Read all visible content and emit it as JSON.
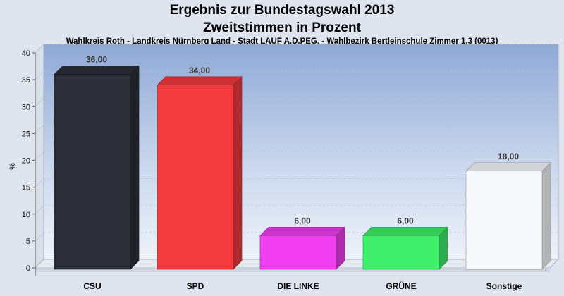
{
  "chart_data": {
    "type": "bar",
    "title": "Ergebnis zur Bundestagswahl 2013",
    "title2": "Zweitstimmen in Prozent",
    "subtitle": "Wahlkreis Roth - Landkreis Nürnberg Land - Stadt LAUF A.D.PEG. - Wahlbezirk Bertleinschule Zimmer 1.3 (0013)",
    "ylabel": "%",
    "ylim": [
      0,
      40
    ],
    "yticks": [
      0,
      5,
      10,
      15,
      20,
      25,
      30,
      35,
      40
    ],
    "categories": [
      "CSU",
      "SPD",
      "DIE LINKE",
      "GRÜNE",
      "Sonstige"
    ],
    "values": [
      36,
      34,
      6,
      6,
      18
    ],
    "value_labels": [
      "36,00",
      "34,00",
      "6,00",
      "6,00",
      "18,00"
    ],
    "colors": [
      "#2c2f38",
      "#f23a3f",
      "#f03ef0",
      "#3ef06c",
      "#f6f8fc"
    ],
    "grid": true,
    "legend": "none"
  }
}
